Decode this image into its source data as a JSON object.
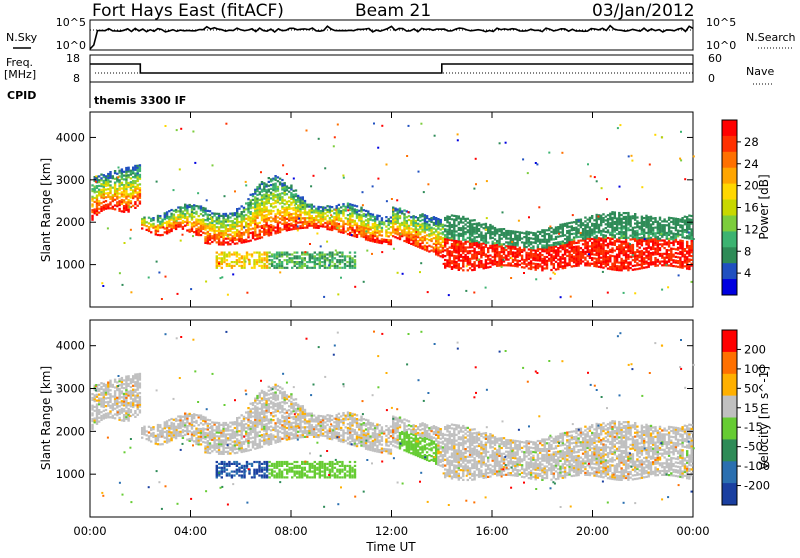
{
  "header": {
    "title": "Fort Hays East (fitACF)",
    "beam": "Beam 21",
    "date": "03/Jan/2012"
  },
  "strip_labels": {
    "nsky": "N.Sky",
    "nsky_ticks": [
      "10^5",
      "10^0"
    ],
    "nsearch": "N.Search",
    "nsearch_ticks": [
      "10^5",
      "10^0"
    ],
    "freq": "Freq.",
    "freq_unit": "[MHz]",
    "freq_ticks": [
      "18",
      "8"
    ],
    "nave": "Nave",
    "nave_ticks": [
      "60",
      "0"
    ],
    "cpid": "CPID",
    "cpid_value": "themis 3300 IF"
  },
  "chart_data": [
    {
      "type": "heatmap",
      "name": "power-panel",
      "ylabel": "Slant Range [km]",
      "yticks": [
        "4000",
        "3000",
        "2000",
        "1000"
      ],
      "ylim": [
        0,
        4600
      ],
      "xlim": [
        0,
        24
      ],
      "colorbar_label": "Power [dB]",
      "colorbar_ticks": [
        "28",
        "24",
        "20",
        "16",
        "12",
        "8",
        "4"
      ],
      "colors": [
        "#0000e0",
        "#2050c0",
        "#2e8b57",
        "#3cb371",
        "#7ccd3c",
        "#c8d800",
        "#ffd700",
        "#ffa500",
        "#ff7000",
        "#ff3000",
        "#ff0000"
      ]
    },
    {
      "type": "heatmap",
      "name": "velocity-panel",
      "ylabel": "Slant Range [km]",
      "yticks": [
        "4000",
        "3000",
        "2000",
        "1000"
      ],
      "ylim": [
        0,
        4600
      ],
      "xlim": [
        0,
        24
      ],
      "colorbar_label": "Velocity [m s^-1]",
      "colorbar_ticks": [
        "200",
        "100",
        "50",
        "15",
        "-15",
        "-50",
        "-100",
        "-200"
      ],
      "colors": [
        "#1a3fa0",
        "#2a6fb0",
        "#2e8b57",
        "#66cc33",
        "#c0c0c0",
        "#ffb000",
        "#ff7000",
        "#ff0000"
      ]
    }
  ],
  "xaxis": {
    "label": "Time UT",
    "ticks": [
      "00:00",
      "04:00",
      "08:00",
      "12:00",
      "16:00",
      "20:00",
      "00:00"
    ]
  }
}
